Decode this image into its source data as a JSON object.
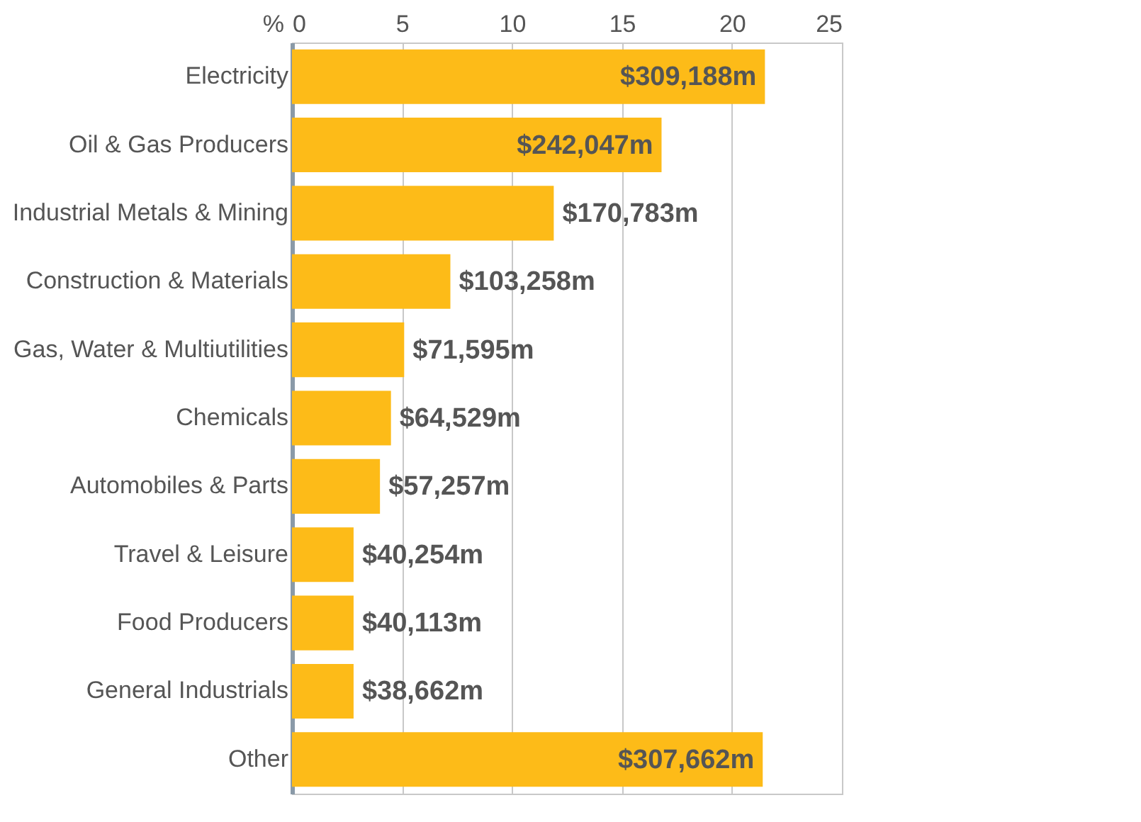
{
  "chart_data": {
    "type": "bar",
    "orientation": "horizontal",
    "xlabel": "%",
    "categories": [
      "Electricity",
      "Oil & Gas Producers",
      "Industrial Metals & Mining",
      "Construction & Materials",
      "Gas, Water & Multiutilities",
      "Chemicals",
      "Automobiles & Parts",
      "Travel & Leisure",
      "Food Producers",
      "General Industrials",
      "Other"
    ],
    "values": [
      21.5,
      16.8,
      11.9,
      7.2,
      5.1,
      4.5,
      4.0,
      2.8,
      2.8,
      2.8,
      21.4
    ],
    "annotations": [
      {
        "text": "$309,188m",
        "x": 21.5,
        "y": "Electricity"
      },
      {
        "text": "$242,047m",
        "x": 16.8,
        "y": "Oil & Gas Producers"
      },
      {
        "text": "$170,783m",
        "x": 11.9,
        "y": "Industrial Metals & Mining"
      },
      {
        "text": "$103,258m",
        "x": 7.2,
        "y": "Construction & Materials"
      },
      {
        "text": "$71,595m",
        "x": 5.1,
        "y": "Gas, Water & Multiutilities"
      },
      {
        "text": "$64,529m",
        "x": 4.5,
        "y": "Chemicals"
      },
      {
        "text": "$57,257m",
        "x": 4.0,
        "y": "Automobiles & Parts"
      },
      {
        "text": "$40,254m",
        "x": 2.8,
        "y": "Travel & Leisure"
      },
      {
        "text": "$40,113m",
        "x": 2.8,
        "y": "Food Producers"
      },
      {
        "text": "$38,662m",
        "x": 2.8,
        "y": "General Industrials"
      },
      {
        "text": "$307,662m",
        "x": 21.4,
        "y": "Other"
      }
    ],
    "color": "#fdbb18",
    "xlim": [
      0,
      25
    ],
    "xticks": [
      0,
      5,
      10,
      15,
      20,
      25
    ],
    "grid": "x"
  }
}
